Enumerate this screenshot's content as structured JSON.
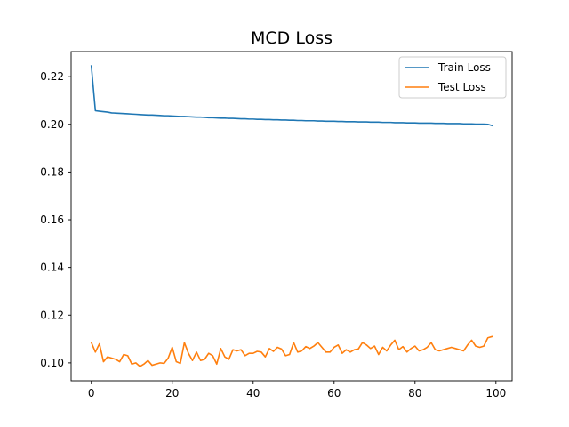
{
  "chart_data": {
    "type": "line",
    "title": "MCD Loss",
    "xlabel": "",
    "ylabel": "",
    "xlim": [
      -5,
      104
    ],
    "ylim": [
      0.0925,
      0.2305
    ],
    "xticks": [
      0,
      20,
      40,
      60,
      80,
      100
    ],
    "yticks": [
      0.1,
      0.12,
      0.14,
      0.16,
      0.18,
      0.2,
      0.22
    ],
    "ytick_labels": [
      "0.10",
      "0.12",
      "0.14",
      "0.16",
      "0.18",
      "0.20",
      "0.22"
    ],
    "xtick_labels": [
      "0",
      "20",
      "40",
      "60",
      "80",
      "100"
    ],
    "grid": false,
    "legend_position": "top-right",
    "x": [
      0,
      1,
      2,
      3,
      4,
      5,
      6,
      7,
      8,
      9,
      10,
      11,
      12,
      13,
      14,
      15,
      16,
      17,
      18,
      19,
      20,
      21,
      22,
      23,
      24,
      25,
      26,
      27,
      28,
      29,
      30,
      31,
      32,
      33,
      34,
      35,
      36,
      37,
      38,
      39,
      40,
      41,
      42,
      43,
      44,
      45,
      46,
      47,
      48,
      49,
      50,
      51,
      52,
      53,
      54,
      55,
      56,
      57,
      58,
      59,
      60,
      61,
      62,
      63,
      64,
      65,
      66,
      67,
      68,
      69,
      70,
      71,
      72,
      73,
      74,
      75,
      76,
      77,
      78,
      79,
      80,
      81,
      82,
      83,
      84,
      85,
      86,
      87,
      88,
      89,
      90,
      91,
      92,
      93,
      94,
      95,
      96,
      97,
      98,
      99
    ],
    "series": [
      {
        "name": "Train Loss",
        "color": "#1f77b4",
        "values": [
          0.2245,
          0.2057,
          0.2055,
          0.2053,
          0.2051,
          0.2048,
          0.2047,
          0.2046,
          0.2045,
          0.2044,
          0.2043,
          0.2042,
          0.2041,
          0.204,
          0.2039,
          0.2039,
          0.2038,
          0.2037,
          0.2036,
          0.2036,
          0.2035,
          0.2034,
          0.2033,
          0.2033,
          0.2032,
          0.2031,
          0.203,
          0.203,
          0.2029,
          0.2028,
          0.2028,
          0.2027,
          0.2026,
          0.2026,
          0.2025,
          0.2025,
          0.2024,
          0.2023,
          0.2023,
          0.2022,
          0.2022,
          0.2021,
          0.2021,
          0.202,
          0.202,
          0.2019,
          0.2019,
          0.2018,
          0.2018,
          0.2017,
          0.2017,
          0.2016,
          0.2016,
          0.2015,
          0.2015,
          0.2015,
          0.2014,
          0.2014,
          0.2013,
          0.2013,
          0.2013,
          0.2012,
          0.2012,
          0.2011,
          0.2011,
          0.2011,
          0.201,
          0.201,
          0.201,
          0.2009,
          0.2009,
          0.2009,
          0.2008,
          0.2008,
          0.2008,
          0.2007,
          0.2007,
          0.2007,
          0.2006,
          0.2006,
          0.2006,
          0.2005,
          0.2005,
          0.2005,
          0.2005,
          0.2004,
          0.2004,
          0.2004,
          0.2003,
          0.2003,
          0.2003,
          0.2003,
          0.2002,
          0.2002,
          0.2002,
          0.2001,
          0.2001,
          0.2001,
          0.2,
          0.1995
        ]
      },
      {
        "name": "Test Loss",
        "color": "#ff7f0e",
        "values": [
          0.1085,
          0.1045,
          0.108,
          0.1005,
          0.1025,
          0.102,
          0.1015,
          0.1005,
          0.1035,
          0.103,
          0.0995,
          0.1,
          0.0985,
          0.0995,
          0.101,
          0.099,
          0.0995,
          0.1,
          0.0998,
          0.102,
          0.1065,
          0.1005,
          0.0998,
          0.1085,
          0.104,
          0.101,
          0.1045,
          0.101,
          0.1015,
          0.104,
          0.103,
          0.0995,
          0.106,
          0.1025,
          0.1015,
          0.1055,
          0.105,
          0.1055,
          0.103,
          0.104,
          0.104,
          0.1048,
          0.1045,
          0.1025,
          0.106,
          0.1048,
          0.1065,
          0.1058,
          0.103,
          0.1035,
          0.1085,
          0.1045,
          0.105,
          0.1068,
          0.106,
          0.107,
          0.1085,
          0.1065,
          0.1045,
          0.1045,
          0.1065,
          0.1075,
          0.104,
          0.1055,
          0.1045,
          0.1055,
          0.1058,
          0.1085,
          0.1075,
          0.106,
          0.107,
          0.1035,
          0.1065,
          0.105,
          0.1075,
          0.1095,
          0.1055,
          0.1068,
          0.1045,
          0.106,
          0.107,
          0.105,
          0.1055,
          0.1065,
          0.1085,
          0.1055,
          0.105,
          0.1055,
          0.106,
          0.1065,
          0.106,
          0.1055,
          0.105,
          0.1075,
          0.1095,
          0.107,
          0.1065,
          0.107,
          0.1105,
          0.111
        ]
      }
    ]
  }
}
